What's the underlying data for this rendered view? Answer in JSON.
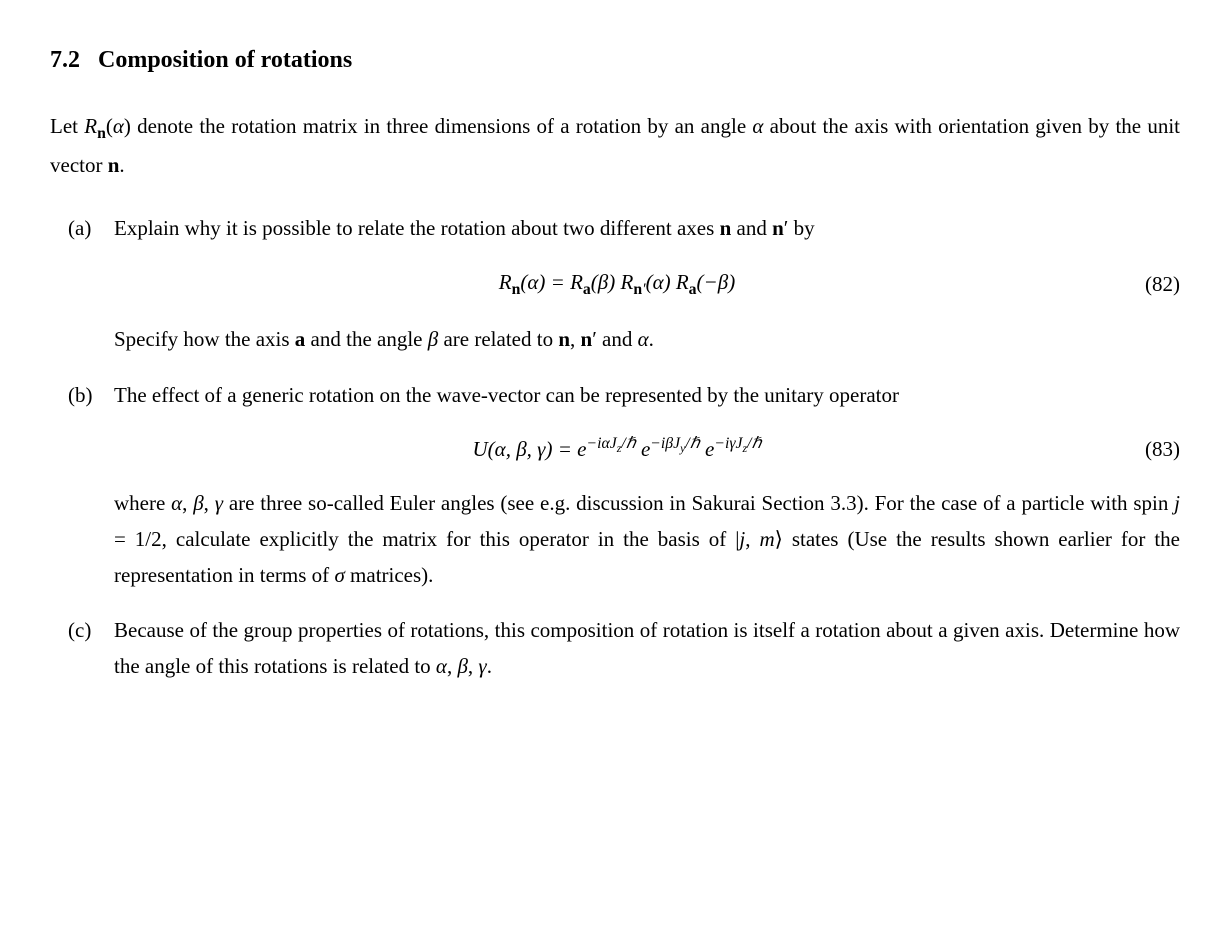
{
  "heading": {
    "number": "7.2",
    "title": "Composition of rotations"
  },
  "intro": {
    "prefix": "Let ",
    "Rn_alpha_html": "<span class=\"ital\">R</span><sub><span class=\"bold\">n</span></sub>(<span class=\"ital\">α</span>)",
    "mid": " denote the rotation matrix in three dimensions of a rotation by an angle ",
    "alpha_html": "<span class=\"ital\">α</span>",
    "suffix": " about the axis with orientation given by the unit vector ",
    "n_html": "<span class=\"bold\">n</span>",
    "end": "."
  },
  "items": {
    "a": {
      "label": "(a)",
      "text_prefix": "Explain why it is possible to relate the rotation about two different axes ",
      "n_html": "<span class=\"bold\">n</span>",
      "and": " and ",
      "nprime_html": "<span class=\"bold\">n</span>′",
      "by": " by",
      "equation_html": "<span class=\"ital\">R</span><sub><span class=\"bold\">n</span></sub>(<span class=\"ital\">α</span>) = <span class=\"ital\">R</span><sub><span class=\"bold\">a</span></sub>(<span class=\"ital\">β</span>) <span class=\"ital\">R</span><sub><span class=\"bold\">n</span>′</sub>(<span class=\"ital\">α</span>) <span class=\"ital\">R</span><sub><span class=\"bold\">a</span></sub>(−<span class=\"ital\">β</span>)",
      "eq_number": "(82)",
      "after_prefix": "Specify how the axis ",
      "a_html": "<span class=\"bold\">a</span>",
      "after_mid1": " and the angle ",
      "beta_html": "<span class=\"ital\">β</span>",
      "after_mid2": " are related to ",
      "after_mid3": ", ",
      "after_mid4": " and ",
      "after_end": "."
    },
    "b": {
      "label": "(b)",
      "text1": "The effect of a generic rotation on the wave-vector can be represented by the unitary operator",
      "equation_html": "<span class=\"ital\">U</span>(<span class=\"ital\">α</span>, <span class=\"ital\">β</span>, <span class=\"ital\">γ</span>) = e<sup>−<span class=\"ital\">iαJ<sub>z</sub></span>/ℏ</sup>&nbsp;e<sup>−<span class=\"ital\">iβJ<sub>y</sub></span>/ℏ</sup>&nbsp;e<sup>−<span class=\"ital\">iγJ<sub>z</sub></span>/ℏ</sup>",
      "eq_number": "(83)",
      "text2_prefix": "where ",
      "abg_html": "<span class=\"ital\">α</span>, <span class=\"ital\">β</span>, <span class=\"ital\">γ</span>",
      "text2_mid1": " are three so-called Euler angles (see e.g. discussion in Sakurai Section 3.3). For the case of a particle with spin ",
      "spin_html": "<span class=\"ital\">j</span> = 1/2",
      "text2_mid2": ", calculate explicitly the matrix for this operator in the basis of ",
      "ket_html": "|<span class=\"ital\">j</span>, <span class=\"ital\">m</span>⟩",
      "text2_mid3": " states (Use the results shown earlier for the representation in terms of ",
      "sigma_html": "<span class=\"ital\">σ</span>",
      "text2_end": " matrices)."
    },
    "c": {
      "label": "(c)",
      "text_prefix": "Because of the group properties of rotations, this composition of rotation is itself a rotation about a given axis. Determine how the angle of this rotations is related to ",
      "abg_html": "<span class=\"ital\">α</span>, <span class=\"ital\">β</span>, <span class=\"ital\">γ</span>",
      "text_end": "."
    }
  }
}
